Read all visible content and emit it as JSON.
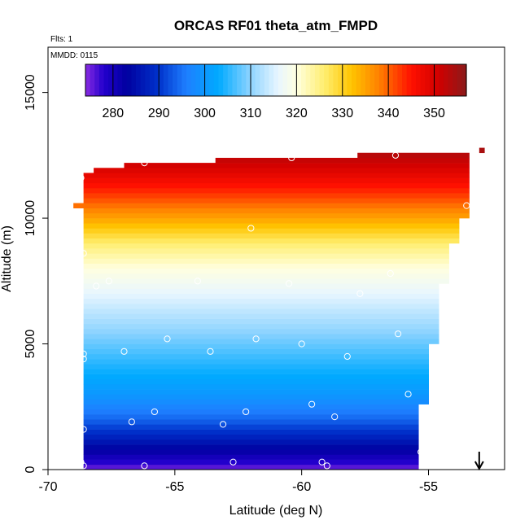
{
  "chart_data": {
    "type": "heatmap",
    "title": "ORCAS RF01 theta_atm_FMPD",
    "xlabel": "Latitude (deg N)",
    "ylabel": "Altitude (m)",
    "flights_note": "Flts: 1",
    "mmdd_note": "MMDD: 0115",
    "xlim": [
      -70,
      -52
    ],
    "ylim": [
      0,
      16800
    ],
    "x_ticks": [
      -70,
      -65,
      -60,
      -55
    ],
    "x_tick_labels": [
      "-70",
      "-65",
      "-60",
      "-55"
    ],
    "y_ticks": [
      0,
      5000,
      10000,
      15000
    ],
    "y_tick_labels": [
      "0",
      "5000",
      "10000",
      "15000"
    ],
    "colorbar": {
      "min": 274,
      "max": 357,
      "ticks": [
        280,
        290,
        300,
        310,
        320,
        330,
        340,
        350
      ],
      "tick_labels": [
        "280",
        "290",
        "300",
        "310",
        "320",
        "330",
        "340",
        "350"
      ],
      "stops": [
        {
          "v": 274,
          "c": "#8a2be2"
        },
        {
          "v": 278,
          "c": "#2200cc"
        },
        {
          "v": 283,
          "c": "#0000a0"
        },
        {
          "v": 290,
          "c": "#0033cc"
        },
        {
          "v": 296,
          "c": "#1e7fff"
        },
        {
          "v": 303,
          "c": "#00aaff"
        },
        {
          "v": 310,
          "c": "#8fd4ff"
        },
        {
          "v": 316,
          "c": "#e8f6ff"
        },
        {
          "v": 320,
          "c": "#ffffe0"
        },
        {
          "v": 326,
          "c": "#ffee70"
        },
        {
          "v": 332,
          "c": "#ffc400"
        },
        {
          "v": 338,
          "c": "#ff8000"
        },
        {
          "v": 345,
          "c": "#ff1000"
        },
        {
          "v": 351,
          "c": "#d00000"
        },
        {
          "v": 357,
          "c": "#8b1a1a"
        }
      ]
    },
    "theta_profile": {
      "altitude_m": [
        0,
        500,
        1000,
        2000,
        3000,
        4000,
        5000,
        6000,
        7000,
        8000,
        9000,
        10000,
        11000,
        12000,
        12800
      ],
      "theta_K": [
        275,
        280,
        285,
        294,
        300,
        304,
        308,
        312,
        316,
        320,
        326,
        335,
        343,
        350,
        355
      ]
    },
    "field_extent": [
      {
        "lat": -68.7,
        "top_m": 11800
      },
      {
        "lat": -67.2,
        "top_m": 12100
      },
      {
        "lat": -63.5,
        "top_m": 12300
      },
      {
        "lat": -60.3,
        "top_m": 12400
      },
      {
        "lat": -53.2,
        "top_m": 12700
      }
    ],
    "field_left_lat_by_altitude": [
      {
        "alt_m": 0,
        "lat": -68.7
      },
      {
        "alt_m": 800,
        "lat": -68.7
      },
      {
        "alt_m": 1500,
        "lat": -68.9
      },
      {
        "alt_m": 10500,
        "lat": -69.0
      },
      {
        "alt_m": 11800,
        "lat": -68.7
      }
    ],
    "field_right_lat_by_altitude": [
      {
        "alt_m": 0,
        "lat": -55.1
      },
      {
        "alt_m": 1500,
        "lat": -55.3
      },
      {
        "alt_m": 3000,
        "lat": -54.9
      },
      {
        "alt_m": 5000,
        "lat": -54.6
      },
      {
        "alt_m": 7000,
        "lat": -54.3
      },
      {
        "alt_m": 9000,
        "lat": -53.8
      },
      {
        "alt_m": 10200,
        "lat": -53.3
      },
      {
        "alt_m": 12700,
        "lat": -53.0
      }
    ],
    "flight_points": [
      {
        "lat": -68.7,
        "alt": 11600
      },
      {
        "lat": -68.8,
        "alt": 9800
      },
      {
        "lat": -68.6,
        "alt": 8600
      },
      {
        "lat": -68.1,
        "alt": 7300
      },
      {
        "lat": -67.6,
        "alt": 7500
      },
      {
        "lat": -68.9,
        "alt": 6200
      },
      {
        "lat": -68.6,
        "alt": 4600
      },
      {
        "lat": -68.6,
        "alt": 4400
      },
      {
        "lat": -67.0,
        "alt": 4700
      },
      {
        "lat": -66.7,
        "alt": 1900
      },
      {
        "lat": -65.8,
        "alt": 2300
      },
      {
        "lat": -68.8,
        "alt": 1800
      },
      {
        "lat": -68.6,
        "alt": 1600
      },
      {
        "lat": -68.7,
        "alt": 300
      },
      {
        "lat": -68.6,
        "alt": 150
      },
      {
        "lat": -66.2,
        "alt": 12200
      },
      {
        "lat": -66.2,
        "alt": 150
      },
      {
        "lat": -65.3,
        "alt": 5200
      },
      {
        "lat": -64.1,
        "alt": 7500
      },
      {
        "lat": -63.6,
        "alt": 4700
      },
      {
        "lat": -63.1,
        "alt": 1800
      },
      {
        "lat": -62.7,
        "alt": 300
      },
      {
        "lat": -62.0,
        "alt": 9600
      },
      {
        "lat": -61.8,
        "alt": 5200
      },
      {
        "lat": -62.2,
        "alt": 2300
      },
      {
        "lat": -60.5,
        "alt": 7400
      },
      {
        "lat": -60.0,
        "alt": 5000
      },
      {
        "lat": -59.6,
        "alt": 2600
      },
      {
        "lat": -60.4,
        "alt": 12400
      },
      {
        "lat": -59.2,
        "alt": 300
      },
      {
        "lat": -59.0,
        "alt": 150
      },
      {
        "lat": -58.7,
        "alt": 2100
      },
      {
        "lat": -58.2,
        "alt": 4500
      },
      {
        "lat": -57.7,
        "alt": 7000
      },
      {
        "lat": -56.5,
        "alt": 7800
      },
      {
        "lat": -56.2,
        "alt": 5400
      },
      {
        "lat": -55.8,
        "alt": 3000
      },
      {
        "lat": -56.3,
        "alt": 12500
      },
      {
        "lat": -55.3,
        "alt": 700
      },
      {
        "lat": -55.2,
        "alt": 150
      },
      {
        "lat": -54.8,
        "alt": 1500
      },
      {
        "lat": -54.6,
        "alt": 4000
      },
      {
        "lat": -54.0,
        "alt": 6400
      },
      {
        "lat": -53.5,
        "alt": 10500
      },
      {
        "lat": -53.1,
        "alt": 12500
      }
    ],
    "arrow_marker": {
      "lat": -53.0,
      "direction": "down"
    }
  }
}
